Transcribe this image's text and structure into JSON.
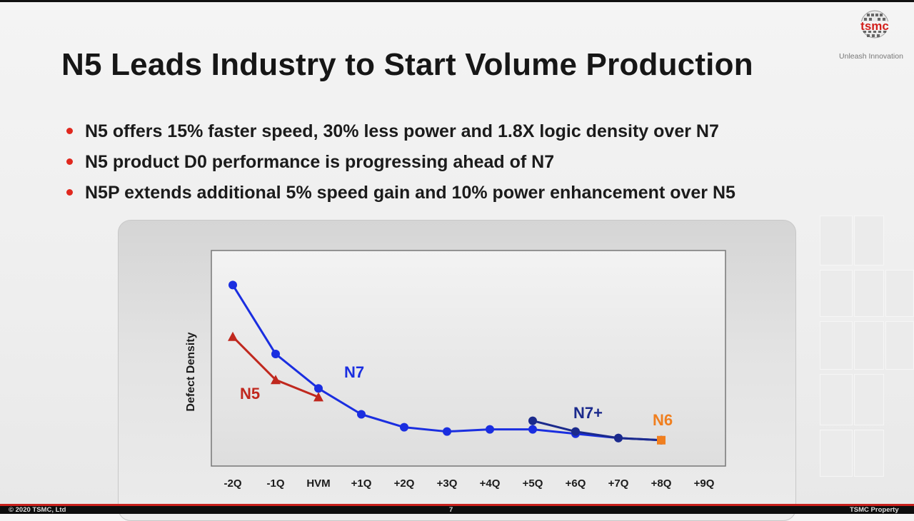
{
  "slide": {
    "title": "N5 Leads Industry to Start Volume Production",
    "logo_text": "tsmc",
    "tagline": "Unleash Innovation",
    "bullets": [
      "N5 offers 15% faster speed, 30% less power and 1.8X logic density over N7",
      "N5 product D0 performance is progressing ahead of N7",
      "N5P extends additional 5% speed gain and 10% power enhancement over N5"
    ]
  },
  "footer": {
    "copyright": "© 2020 TSMC, Ltd",
    "page": "7",
    "property": "TSMC Property"
  },
  "colors": {
    "accent_red": "#e0281e",
    "n7": "#1a2ee0",
    "n7plus": "#1b2a8c",
    "n5": "#c0281e",
    "n6": "#f07f1f"
  },
  "chart_data": {
    "type": "line",
    "title": "",
    "xlabel": "",
    "ylabel": "Defect Density",
    "categories": [
      "-2Q",
      "-1Q",
      "HVM",
      "+1Q",
      "+2Q",
      "+3Q",
      "+4Q",
      "+5Q",
      "+6Q",
      "+7Q",
      "+8Q",
      "+9Q"
    ],
    "ylim": [
      0,
      100
    ],
    "y_ticks_shown": false,
    "grid": false,
    "series": [
      {
        "name": "N7",
        "color": "#1a2ee0",
        "marker": "circle",
        "values": [
          84,
          52,
          36,
          24,
          18,
          16,
          17,
          17,
          15,
          13,
          12,
          null
        ]
      },
      {
        "name": "N5",
        "color": "#c0281e",
        "marker": "triangle",
        "values": [
          60,
          40,
          32,
          null,
          null,
          null,
          null,
          null,
          null,
          null,
          null,
          null
        ]
      },
      {
        "name": "N7+",
        "color": "#1b2a8c",
        "marker": "circle",
        "values": [
          null,
          null,
          null,
          null,
          null,
          null,
          null,
          21,
          16,
          13,
          12,
          null
        ]
      },
      {
        "name": "N6",
        "color": "#f07f1f",
        "marker": "square",
        "values": [
          null,
          null,
          null,
          null,
          null,
          null,
          null,
          null,
          null,
          null,
          12,
          null
        ]
      }
    ]
  }
}
